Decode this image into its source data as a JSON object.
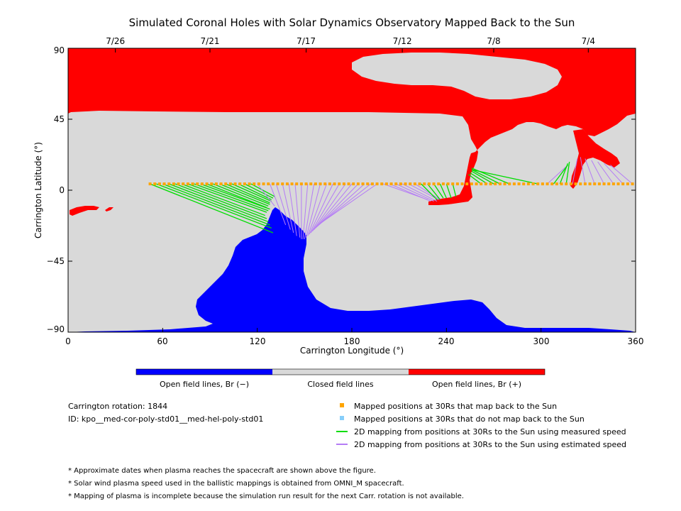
{
  "chart_data": {
    "type": "map",
    "title": "Simulated Coronal Holes with Solar Dynamics Observatory Mapped Back to the Sun",
    "xlabel": "Carrington Longitude (°)",
    "ylabel": "Carrington Latitude (°)",
    "xlim": [
      0,
      360
    ],
    "ylim": [
      -90,
      90
    ],
    "xticks": [
      "0",
      "60",
      "120",
      "180",
      "240",
      "300",
      "360"
    ],
    "yticks": [
      "90",
      "45",
      "0",
      "−45",
      "−90"
    ],
    "date_axis": [
      {
        "label": "7/26",
        "longitude": 30
      },
      {
        "label": "7/21",
        "longitude": 90
      },
      {
        "label": "7/17",
        "longitude": 151
      },
      {
        "label": "7/12",
        "longitude": 212
      },
      {
        "label": "7/8",
        "longitude": 270
      },
      {
        "label": "7/4",
        "longitude": 330
      }
    ],
    "regions": [
      {
        "name": "Open field lines, Br (−)",
        "color": "#0000ff"
      },
      {
        "name": "Closed field lines",
        "color": "#d9d9d9"
      },
      {
        "name": "Open field lines, Br (+)",
        "color": "#ff0000"
      }
    ],
    "mapped_points_lat_30rs": 4,
    "mapped_points_lon_start": 52,
    "mapped_points_lon_end": 358,
    "mapped_points_lon_step": 3,
    "mappings": [
      {
        "lon0": 52,
        "lat0": 4,
        "lon1": 130,
        "lat1": -27,
        "kind": "measured"
      },
      {
        "lon0": 56,
        "lat0": 4,
        "lon1": 129,
        "lat1": -24,
        "kind": "measured"
      },
      {
        "lon0": 60,
        "lat0": 4,
        "lon1": 128,
        "lat1": -22,
        "kind": "measured"
      },
      {
        "lon0": 64,
        "lat0": 4,
        "lon1": 127,
        "lat1": -20,
        "kind": "measured"
      },
      {
        "lon0": 68,
        "lat0": 4,
        "lon1": 126,
        "lat1": -18,
        "kind": "measured"
      },
      {
        "lon0": 72,
        "lat0": 4,
        "lon1": 125,
        "lat1": -16,
        "kind": "measured"
      },
      {
        "lon0": 76,
        "lat0": 4,
        "lon1": 126,
        "lat1": -14,
        "kind": "measured"
      },
      {
        "lon0": 80,
        "lat0": 4,
        "lon1": 127,
        "lat1": -13,
        "kind": "measured"
      },
      {
        "lon0": 84,
        "lat0": 4,
        "lon1": 128,
        "lat1": -12,
        "kind": "measured"
      },
      {
        "lon0": 88,
        "lat0": 4,
        "lon1": 126,
        "lat1": -11,
        "kind": "measured"
      },
      {
        "lon0": 92,
        "lat0": 4,
        "lon1": 127,
        "lat1": -10,
        "kind": "measured"
      },
      {
        "lon0": 96,
        "lat0": 4,
        "lon1": 128,
        "lat1": -9,
        "kind": "measured"
      },
      {
        "lon0": 100,
        "lat0": 4,
        "lon1": 128,
        "lat1": -8,
        "kind": "measured"
      },
      {
        "lon0": 104,
        "lat0": 4,
        "lon1": 129,
        "lat1": -7,
        "kind": "measured"
      },
      {
        "lon0": 108,
        "lat0": 4,
        "lon1": 129,
        "lat1": -6,
        "kind": "measured"
      },
      {
        "lon0": 112,
        "lat0": 4,
        "lon1": 130,
        "lat1": -5,
        "kind": "measured"
      },
      {
        "lon0": 116,
        "lat0": 4,
        "lon1": 131,
        "lat1": -4,
        "kind": "measured"
      },
      {
        "lon0": 120,
        "lat0": 4,
        "lon1": 131,
        "lat1": -10,
        "kind": "estimated"
      },
      {
        "lon0": 128,
        "lat0": 4,
        "lon1": 138,
        "lat1": -22,
        "kind": "estimated"
      },
      {
        "lon0": 132,
        "lat0": 4,
        "lon1": 141,
        "lat1": -25,
        "kind": "estimated"
      },
      {
        "lon0": 136,
        "lat0": 4,
        "lon1": 143,
        "lat1": -27,
        "kind": "estimated"
      },
      {
        "lon0": 140,
        "lat0": 4,
        "lon1": 145,
        "lat1": -29,
        "kind": "estimated"
      },
      {
        "lon0": 144,
        "lat0": 4,
        "lon1": 147,
        "lat1": -30,
        "kind": "estimated"
      },
      {
        "lon0": 148,
        "lat0": 4,
        "lon1": 148,
        "lat1": -31,
        "kind": "estimated"
      },
      {
        "lon0": 152,
        "lat0": 4,
        "lon1": 149,
        "lat1": -31,
        "kind": "estimated"
      },
      {
        "lon0": 156,
        "lat0": 4,
        "lon1": 150,
        "lat1": -31,
        "kind": "estimated"
      },
      {
        "lon0": 160,
        "lat0": 4,
        "lon1": 151,
        "lat1": -30,
        "kind": "estimated"
      },
      {
        "lon0": 164,
        "lat0": 4,
        "lon1": 152,
        "lat1": -29,
        "kind": "estimated"
      },
      {
        "lon0": 168,
        "lat0": 4,
        "lon1": 153,
        "lat1": -28,
        "kind": "estimated"
      },
      {
        "lon0": 172,
        "lat0": 4,
        "lon1": 154,
        "lat1": -27,
        "kind": "estimated"
      },
      {
        "lon0": 176,
        "lat0": 4,
        "lon1": 155,
        "lat1": -26,
        "kind": "estimated"
      },
      {
        "lon0": 180,
        "lat0": 4,
        "lon1": 156,
        "lat1": -25,
        "kind": "estimated"
      },
      {
        "lon0": 184,
        "lat0": 4,
        "lon1": 157,
        "lat1": -24,
        "kind": "estimated"
      },
      {
        "lon0": 188,
        "lat0": 4,
        "lon1": 158,
        "lat1": -23,
        "kind": "estimated"
      },
      {
        "lon0": 192,
        "lat0": 4,
        "lon1": 159,
        "lat1": -22,
        "kind": "estimated"
      },
      {
        "lon0": 196,
        "lat0": 4,
        "lon1": 160,
        "lat1": -21,
        "kind": "estimated"
      },
      {
        "lon0": 200,
        "lat0": 4,
        "lon1": 228,
        "lat1": -6,
        "kind": "estimated"
      },
      {
        "lon0": 204,
        "lat0": 4,
        "lon1": 230,
        "lat1": -7,
        "kind": "estimated"
      },
      {
        "lon0": 208,
        "lat0": 4,
        "lon1": 232,
        "lat1": -7,
        "kind": "estimated"
      },
      {
        "lon0": 212,
        "lat0": 4,
        "lon1": 234,
        "lat1": -7,
        "kind": "estimated"
      },
      {
        "lon0": 216,
        "lat0": 4,
        "lon1": 235,
        "lat1": -6,
        "kind": "estimated"
      },
      {
        "lon0": 220,
        "lat0": 4,
        "lon1": 236,
        "lat1": -6,
        "kind": "estimated"
      },
      {
        "lon0": 224,
        "lat0": 4,
        "lon1": 234,
        "lat1": -6,
        "kind": "measured"
      },
      {
        "lon0": 228,
        "lat0": 4,
        "lon1": 236,
        "lat1": -6,
        "kind": "measured"
      },
      {
        "lon0": 232,
        "lat0": 4,
        "lon1": 238,
        "lat1": -5,
        "kind": "measured"
      },
      {
        "lon0": 236,
        "lat0": 4,
        "lon1": 240,
        "lat1": -5,
        "kind": "measured"
      },
      {
        "lon0": 240,
        "lat0": 4,
        "lon1": 243,
        "lat1": -5,
        "kind": "measured"
      },
      {
        "lon0": 244,
        "lat0": 4,
        "lon1": 246,
        "lat1": -4,
        "kind": "measured"
      },
      {
        "lon0": 262,
        "lat0": 4,
        "lon1": 254,
        "lat1": 10,
        "kind": "measured"
      },
      {
        "lon0": 266,
        "lat0": 4,
        "lon1": 255,
        "lat1": 11,
        "kind": "measured"
      },
      {
        "lon0": 270,
        "lat0": 4,
        "lon1": 256,
        "lat1": 12,
        "kind": "measured"
      },
      {
        "lon0": 274,
        "lat0": 4,
        "lon1": 256,
        "lat1": 13,
        "kind": "measured"
      },
      {
        "lon0": 280,
        "lat0": 4,
        "lon1": 256,
        "lat1": 14,
        "kind": "measured"
      },
      {
        "lon0": 298,
        "lat0": 4,
        "lon1": 256,
        "lat1": 13,
        "kind": "measured"
      },
      {
        "lon0": 304,
        "lat0": 4,
        "lon1": 316,
        "lat1": 15,
        "kind": "estimated"
      },
      {
        "lon0": 308,
        "lat0": 4,
        "lon1": 317,
        "lat1": 16,
        "kind": "measured"
      },
      {
        "lon0": 312,
        "lat0": 4,
        "lon1": 317,
        "lat1": 17,
        "kind": "measured"
      },
      {
        "lon0": 316,
        "lat0": 4,
        "lon1": 318,
        "lat1": 18,
        "kind": "measured"
      },
      {
        "lon0": 320,
        "lat0": 4,
        "lon1": 323,
        "lat1": 20,
        "kind": "estimated"
      },
      {
        "lon0": 328,
        "lat0": 4,
        "lon1": 325,
        "lat1": 21,
        "kind": "estimated"
      },
      {
        "lon0": 334,
        "lat0": 4,
        "lon1": 328,
        "lat1": 20,
        "kind": "estimated"
      },
      {
        "lon0": 340,
        "lat0": 4,
        "lon1": 332,
        "lat1": 19,
        "kind": "estimated"
      },
      {
        "lon0": 346,
        "lat0": 4,
        "lon1": 336,
        "lat1": 18,
        "kind": "estimated"
      },
      {
        "lon0": 352,
        "lat0": 4,
        "lon1": 340,
        "lat1": 17,
        "kind": "estimated"
      },
      {
        "lon0": 358,
        "lat0": 4,
        "lon1": 344,
        "lat1": 16,
        "kind": "estimated"
      }
    ]
  },
  "colors": {
    "closed": "#d9d9d9",
    "positive": "#ff0000",
    "negative": "#0000ff",
    "point_maps": "#ffa500",
    "point_nomap": "#87cefa",
    "line_measured": "#00dd00",
    "line_estimated": "#b57cf5"
  },
  "colorbar_labels": {
    "negative": "Open field lines, Br (−)",
    "closed": "Closed field lines",
    "positive": "Open field lines, Br (+)"
  },
  "info": {
    "rotation": "Carrington rotation: 1844",
    "id": "ID: kpo__med-cor-poly-std01__med-hel-poly-std01"
  },
  "legend": {
    "maps_back": "Mapped positions at 30Rs that map back to the Sun",
    "no_map": "Mapped positions at 30Rs that do not map back to the Sun",
    "measured": "2D mapping from positions at 30Rs to the Sun using measured speed",
    "estimated": "2D mapping from positions at 30Rs to the Sun using estimated speed"
  },
  "notes": [
    "* Approximate dates when plasma reaches the spacecraft are shown above the figure.",
    "* Solar wind plasma speed used in the ballistic mappings is obtained from OMNI_M spacecraft.",
    "* Mapping of plasma is incomplete because the simulation run result for the next Carr. rotation is not available."
  ]
}
